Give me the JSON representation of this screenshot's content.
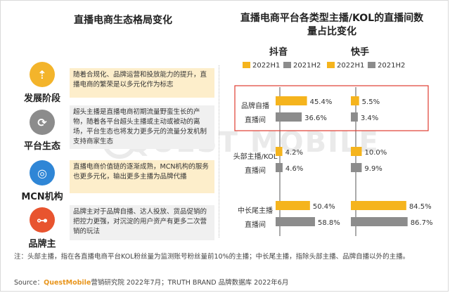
{
  "left_title": "直播电商生态格局变化",
  "right_title_line1": "直播电商平台各类型主播/KOL的直播间数",
  "right_title_line2": "量占比变化",
  "stages": [
    {
      "icon": "development-icon",
      "glyph": "⇡",
      "color": "#f3b42b",
      "label": "发展阶段",
      "text": "随着合规化、品牌运营和投放能力的提升，直播电商的繁荣是以多元化作为标志"
    },
    {
      "icon": "refresh-cycle-icon",
      "glyph": "⟳",
      "color": "#8c8c8c",
      "label": "平台生态",
      "text": "超头主播是直播电商初期流量野蛮生长的产物，随着各平台超头主播或主动或被动的离场，平台生态也将发力更多元的流量分发机制支持商家生态"
    },
    {
      "icon": "mcn-network-icon",
      "glyph": "◎",
      "color": "#2f86d6",
      "label": "MCN机构",
      "text": "直播电商价值链的逐渐成熟，MCN机构的服务也更多元化，输出更多主播为品牌代播"
    },
    {
      "icon": "brand-network-icon",
      "glyph": "⊶",
      "color": "#e8542f",
      "label": "品牌主",
      "text": "品牌主对于品牌自播、达人投放、货品促销的把控力更强，对沉淀的用户资产有更多二次营销的玩法"
    }
  ],
  "watermark": "QUEST MOBILE",
  "chart_data": {
    "type": "bar",
    "orientation": "horizontal",
    "platforms": [
      "抖音",
      "快手"
    ],
    "legend": [
      "2022H1",
      "2021H2"
    ],
    "colors": {
      "2022H1": "#f5b41d",
      "2021H2": "#8c8c8c",
      "highlight": "#e03c31"
    },
    "categories": [
      {
        "line1": "品牌自播",
        "line2": "直播间"
      },
      {
        "line1": "头部主播/KOL",
        "line2": "直播间"
      },
      {
        "line1": "中长尾主播",
        "line2": "直播间"
      }
    ],
    "series": {
      "抖音": {
        "2022H1": [
          45.4,
          4.2,
          50.4
        ],
        "2021H2": [
          36.6,
          4.6,
          58.8
        ]
      },
      "快手": {
        "2022H1": [
          5.5,
          10.0,
          84.5
        ],
        "2021H2": [
          3.4,
          9.9,
          86.7
        ]
      }
    },
    "labels": {
      "抖音": {
        "2022H1": [
          "45.4%",
          "4.2%",
          "50.4%"
        ],
        "2021H2": [
          "36.6%",
          "4.6%",
          "58.8%"
        ]
      },
      "快手": {
        "2022H1": [
          "5.5%",
          "10.0%",
          "84.5%"
        ],
        "2021H2": [
          "3.4%",
          "9.9%",
          "86.7%"
        ]
      }
    },
    "unit": "%",
    "highlight_category": "品牌自播直播间"
  },
  "note": "注：头部主播，指在各直播电商平台KOL粉丝量为监测账号粉丝量前10%的主播；中长尾主播，指除头部主播、品牌自播以外的主播。",
  "source_prefix": "Source：",
  "source_brand": "QuestMobile",
  "source_rest": "营销研究院 2022年7月；TRUTH BRAND 品牌数据库 2022年6月"
}
